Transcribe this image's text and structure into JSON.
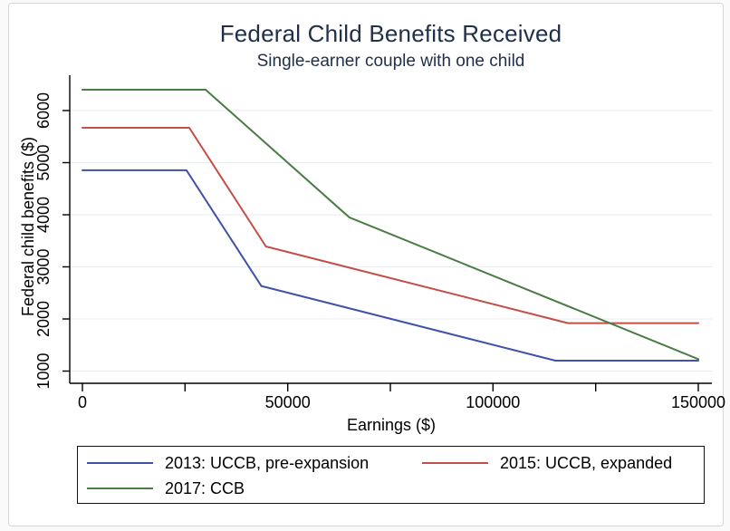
{
  "figure": {
    "background": "#ffffff",
    "frame_border_color": "#d8d8dc",
    "title_color": "#21304a",
    "axis_color": "#000000",
    "gridline_color": "#e9edf2"
  },
  "chart_data": {
    "type": "line",
    "title": "Federal Child Benefits Received",
    "subtitle": "Single-earner couple with one child",
    "xlabel": "Earnings ($)",
    "ylabel": "Federal child benefits ($)",
    "xlim": [
      0,
      150000
    ],
    "ylim": [
      750,
      6650
    ],
    "x_major_ticks": [
      0,
      50000,
      100000,
      150000
    ],
    "x_minor_ticks": [
      25000,
      75000,
      125000
    ],
    "y_ticks": [
      1000,
      2000,
      3000,
      4000,
      5000,
      6000
    ],
    "grid": "horizontal-only",
    "legend_position": "bottom-box",
    "series": [
      {
        "name": "2013: UCCB, pre-expansion",
        "color": "#4052a8",
        "x": [
          0,
          25356,
          43561,
          115211,
          150000
        ],
        "y": [
          4854,
          4854,
          2633,
          1200,
          1200
        ]
      },
      {
        "name": "2015: UCCB, expanded",
        "color": "#c44e48",
        "x": [
          0,
          26021,
          44701,
          118251,
          150000
        ],
        "y": [
          5670,
          5670,
          3391,
          1920,
          1920
        ]
      },
      {
        "name": "2017: CCB",
        "color": "#4b7c45",
        "x": [
          0,
          30000,
          65000,
          150000
        ],
        "y": [
          6400,
          6400,
          3950,
          1230
        ]
      }
    ]
  }
}
